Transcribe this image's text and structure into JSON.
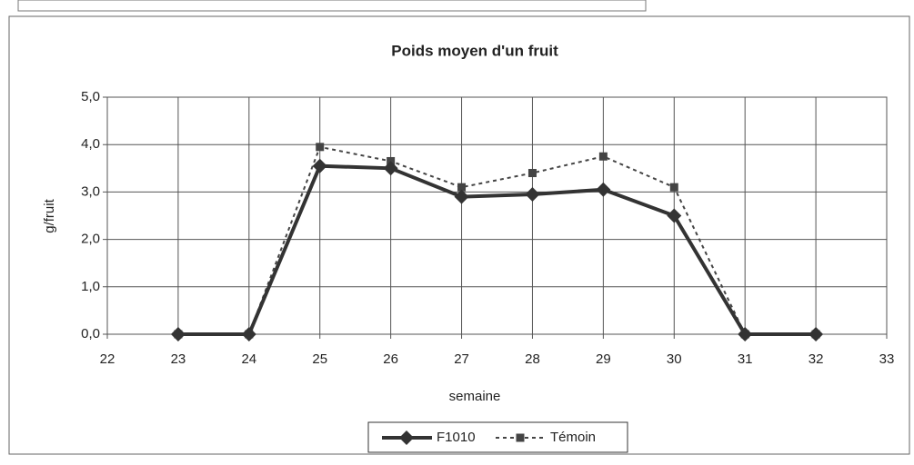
{
  "chart_data": {
    "type": "line",
    "title": "Poids moyen d'un fruit",
    "x_label": "semaine",
    "y_label": "g/fruit",
    "x": [
      23,
      24,
      25,
      26,
      27,
      28,
      29,
      30,
      31,
      32
    ],
    "series": [
      {
        "name": "F1010",
        "color": "#333333",
        "style": "solid",
        "marker": "diamond",
        "values": [
          0,
          0,
          3.55,
          3.5,
          2.9,
          2.95,
          3.05,
          2.5,
          0,
          0
        ]
      },
      {
        "name": "Témoin",
        "color": "#444444",
        "style": "dashed",
        "marker": "square",
        "values": [
          0,
          0,
          3.95,
          3.65,
          3.1,
          3.4,
          3.75,
          3.1,
          0,
          0
        ]
      }
    ],
    "xlim": [
      22,
      33
    ],
    "xticks": [
      22,
      23,
      24,
      25,
      26,
      27,
      28,
      29,
      30,
      31,
      32,
      33
    ],
    "ylim": [
      0,
      5
    ],
    "yticks": [
      {
        "value": 0,
        "label": "0,0"
      },
      {
        "value": 1,
        "label": "1,0"
      },
      {
        "value": 2,
        "label": "2,0"
      },
      {
        "value": 3,
        "label": "3,0"
      },
      {
        "value": 4,
        "label": "4,0"
      },
      {
        "value": 5,
        "label": "5,0"
      }
    ],
    "grid": true,
    "legend": "bottom"
  }
}
